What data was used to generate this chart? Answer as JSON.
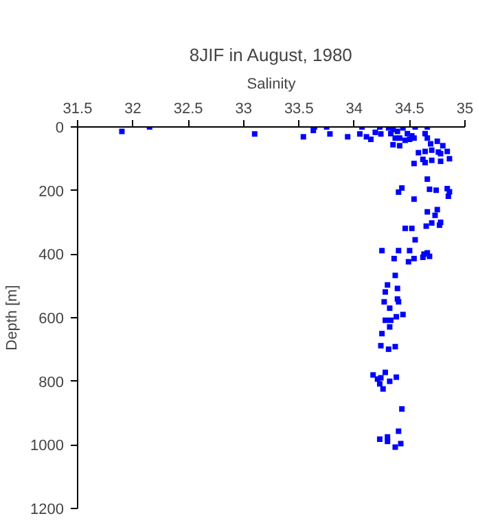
{
  "chart_data": {
    "type": "scatter",
    "title": "8JIF in August, 1980",
    "xlabel": "Salinity",
    "ylabel": "Depth [m]",
    "xlim": [
      31.5,
      35
    ],
    "xticks": [
      31.5,
      32,
      32.5,
      33,
      33.5,
      34,
      34.5,
      35
    ],
    "ylim": [
      1200,
      0
    ],
    "yticks": [
      0,
      200,
      400,
      600,
      800,
      1000,
      1200
    ],
    "grid": false,
    "marker": "square",
    "series": [
      {
        "color": "#0000ff",
        "x": [
          31.9,
          32.15,
          33.1,
          33.54,
          33.63,
          33.64,
          33.75,
          33.78,
          33.94,
          34.07,
          34.05,
          34.11,
          34.15,
          34.19,
          34.23,
          34.24,
          34.31,
          34.35,
          34.39,
          34.44,
          34.48,
          34.52,
          34.33,
          34.37,
          34.41,
          34.46,
          34.5,
          34.35,
          34.41,
          34.55,
          34.66,
          34.64,
          34.66,
          34.54,
          34.69,
          34.75,
          34.8,
          34.58,
          34.64,
          34.7,
          34.76,
          34.84,
          34.62,
          34.7,
          34.78,
          34.86,
          34.54,
          34.64,
          34.78,
          34.66,
          34.54,
          34.68,
          34.74,
          34.84,
          34.86,
          34.43,
          34.4,
          34.85,
          34.66,
          34.73,
          34.75,
          34.7,
          34.77,
          34.78,
          34.65,
          34.46,
          34.52,
          34.55,
          34.25,
          34.4,
          34.36,
          34.5,
          34.49,
          34.54,
          34.62,
          34.66,
          34.68,
          34.63,
          34.37,
          34.3,
          34.39,
          34.28,
          34.27,
          34.4,
          34.32,
          34.39,
          34.44,
          34.38,
          34.28,
          34.33,
          34.32,
          34.25,
          34.24,
          34.37,
          34.31,
          34.17,
          34.21,
          34.24,
          34.28,
          34.32,
          34.38,
          34.23,
          34.26,
          34.43,
          34.23,
          34.3,
          34.4,
          34.3,
          34.37,
          34.42
        ],
        "values": [
          14,
          0,
          22,
          31,
          11,
          0,
          0,
          22,
          31,
          0,
          22,
          31,
          39,
          17,
          0,
          22,
          3,
          8,
          14,
          3,
          21,
          28,
          21,
          35,
          35,
          42,
          39,
          56,
          59,
          0,
          0,
          21,
          35,
          35,
          53,
          45,
          59,
          81,
          77,
          73,
          79,
          77,
          102,
          105,
          108,
          100,
          115,
          112,
          84,
          164,
          227,
          196,
          199,
          194,
          204,
          192,
          205,
          218,
          267,
          278,
          260,
          302,
          309,
          300,
          312,
          319,
          319,
          355,
          389,
          389,
          414,
          389,
          424,
          414,
          410,
          396,
          407,
          400,
          467,
          497,
          508,
          519,
          550,
          550,
          570,
          541,
          590,
          597,
          608,
          608,
          629,
          650,
          688,
          691,
          699,
          780,
          793,
          789,
          772,
          800,
          787,
          808,
          824,
          887,
          982,
          975,
          957,
          989,
          1007,
          996
        ]
      }
    ]
  }
}
